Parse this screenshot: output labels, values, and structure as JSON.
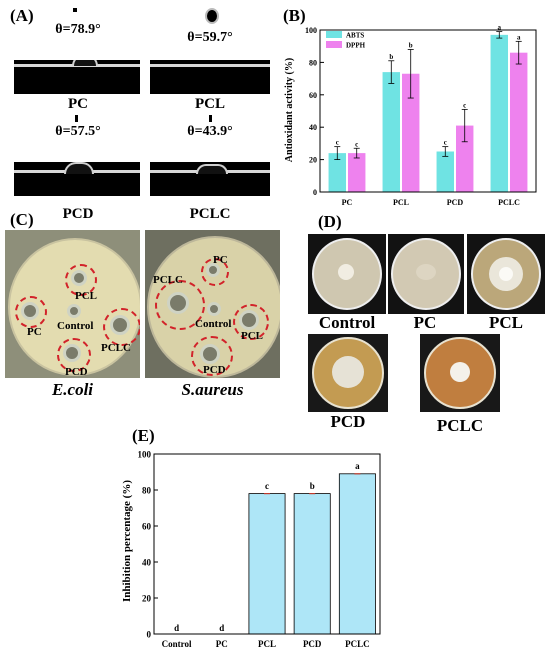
{
  "panel_a": {
    "label": "(A)",
    "samples": [
      {
        "name": "PC",
        "angle": "θ=78.9°"
      },
      {
        "name": "PCL",
        "angle": "θ=59.7°"
      },
      {
        "name": "PCD",
        "angle": "θ=57.5°"
      },
      {
        "name": "PCLC",
        "angle": "θ=43.9°"
      }
    ]
  },
  "panel_b": {
    "label": "(B)"
  },
  "panel_c": {
    "label": "(C)",
    "dish_labels": {
      "ecoli": [
        "PC",
        "PCL",
        "Control",
        "PCLC",
        "PCD"
      ],
      "saureus": [
        "PC",
        "PCLC",
        "Control",
        "PCL",
        "PCD"
      ]
    },
    "bacteria": [
      "E.coli",
      "S.aureus"
    ]
  },
  "panel_d": {
    "label": "(D)",
    "plates": [
      "Control",
      "PC",
      "PCL",
      "PCD",
      "PCLC"
    ]
  },
  "panel_e": {
    "label": "(E)"
  },
  "chart_data": [
    {
      "type": "bar",
      "panel": "(B)",
      "categories": [
        "PC",
        "PCL",
        "PCD",
        "PCLC"
      ],
      "ylabel": "Antioxidant activity (%)",
      "ylim": [
        0,
        100
      ],
      "yticks": [
        0,
        20,
        40,
        60,
        80,
        100
      ],
      "legend_position": "top-left",
      "series": [
        {
          "name": "ABTS",
          "color": "#6fe3e3",
          "values": [
            24,
            74,
            25,
            97
          ],
          "errors": [
            4,
            7,
            3,
            2
          ],
          "letters": [
            "c",
            "b",
            "c",
            "a"
          ]
        },
        {
          "name": "DPPH",
          "color": "#ee82ee",
          "values": [
            24,
            73,
            41,
            86
          ],
          "errors": [
            3,
            15,
            10,
            7
          ],
          "letters": [
            "c",
            "b",
            "c",
            "a"
          ]
        }
      ]
    },
    {
      "type": "bar",
      "panel": "(E)",
      "categories": [
        "Control",
        "PC",
        "PCL",
        "PCD",
        "PCLC"
      ],
      "ylabel": "Inhibition percentage (%)",
      "ylim": [
        0,
        100
      ],
      "yticks": [
        0,
        20,
        40,
        60,
        80,
        100
      ],
      "color": "#aee6f7",
      "values": [
        0,
        0,
        78,
        78,
        89
      ],
      "errors": [
        0,
        0,
        1,
        1,
        1
      ],
      "letters": [
        "d",
        "d",
        "c",
        "b",
        "a"
      ]
    }
  ]
}
